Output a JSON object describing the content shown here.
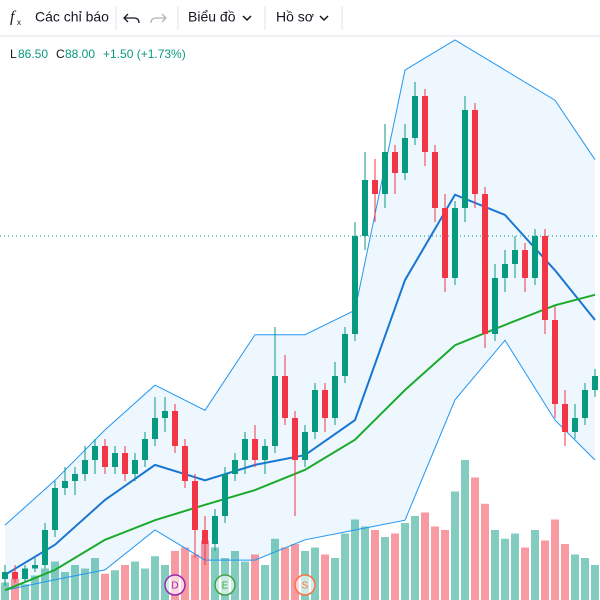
{
  "toolbar": {
    "indicators": "Các chỉ báo",
    "chart": "Biểu đồ",
    "profile": "Hồ sơ"
  },
  "legend": {
    "low_label": "L",
    "low": "86.50",
    "close_label": "C",
    "close": "88.00",
    "change": "+1.50 (+1.73%)"
  },
  "chart_data": {
    "type": "candlestick",
    "ylim": [
      40,
      120
    ],
    "vlim": [
      0,
      100
    ],
    "up_color": "#089981",
    "down_color": "#f23645",
    "candles": [
      [
        43,
        45,
        42,
        44
      ],
      [
        44,
        45,
        42.5,
        43
      ],
      [
        43,
        45,
        42.5,
        44.5
      ],
      [
        44.5,
        46,
        44,
        45
      ],
      [
        45,
        51,
        44.5,
        50
      ],
      [
        50,
        57,
        49,
        56
      ],
      [
        56,
        59,
        55,
        57
      ],
      [
        57,
        59,
        55,
        58
      ],
      [
        58,
        62,
        57,
        60
      ],
      [
        60,
        63,
        58,
        62
      ],
      [
        62,
        63,
        58,
        59
      ],
      [
        59,
        62,
        58,
        61
      ],
      [
        61,
        62,
        57,
        58
      ],
      [
        58,
        61,
        57,
        60
      ],
      [
        60,
        64,
        59,
        63
      ],
      [
        63,
        69,
        62,
        66
      ],
      [
        66,
        69,
        64,
        67
      ],
      [
        67,
        68,
        61,
        62
      ],
      [
        62,
        63,
        56,
        57
      ],
      [
        57,
        58,
        46,
        50
      ],
      [
        50,
        52,
        45,
        48
      ],
      [
        48,
        53,
        47,
        52
      ],
      [
        52,
        59,
        51,
        58
      ],
      [
        58,
        61,
        57,
        60
      ],
      [
        60,
        64,
        58,
        63
      ],
      [
        63,
        65,
        59,
        60
      ],
      [
        60,
        63,
        58,
        62
      ],
      [
        62,
        79,
        61,
        72
      ],
      [
        72,
        75,
        65,
        66
      ],
      [
        66,
        67,
        52,
        60
      ],
      [
        60,
        65,
        59,
        64
      ],
      [
        64,
        71,
        63,
        70
      ],
      [
        70,
        71,
        64,
        66
      ],
      [
        66,
        74,
        65,
        72
      ],
      [
        72,
        79,
        71,
        78
      ],
      [
        78,
        94,
        77,
        92
      ],
      [
        92,
        104,
        90,
        100
      ],
      [
        100,
        103,
        94,
        98
      ],
      [
        98,
        108,
        96,
        104
      ],
      [
        104,
        105,
        98,
        101
      ],
      [
        101,
        108,
        100,
        106
      ],
      [
        106,
        114,
        105,
        112
      ],
      [
        112,
        113,
        102,
        104
      ],
      [
        104,
        105,
        94,
        96
      ],
      [
        96,
        98,
        84,
        86
      ],
      [
        86,
        97,
        85,
        96
      ],
      [
        96,
        112,
        94,
        110
      ],
      [
        110,
        111,
        96,
        98
      ],
      [
        98,
        99,
        76,
        78
      ],
      [
        78,
        88,
        77,
        86
      ],
      [
        86,
        90,
        84,
        88
      ],
      [
        88,
        92,
        86,
        90
      ],
      [
        90,
        91,
        84,
        86
      ],
      [
        86,
        93,
        85,
        92
      ],
      [
        92,
        93,
        78,
        80
      ],
      [
        80,
        82,
        66,
        68
      ],
      [
        68,
        70,
        62,
        64
      ],
      [
        64,
        68,
        63,
        66
      ],
      [
        66,
        71,
        65,
        70
      ],
      [
        70,
        73,
        69,
        72
      ]
    ],
    "volume": [
      10,
      12,
      9,
      14,
      18,
      22,
      16,
      20,
      18,
      24,
      15,
      17,
      20,
      22,
      18,
      25,
      20,
      28,
      30,
      26,
      34,
      30,
      24,
      28,
      22,
      26,
      20,
      35,
      30,
      32,
      28,
      30,
      26,
      24,
      38,
      46,
      42,
      40,
      36,
      38,
      44,
      48,
      50,
      42,
      40,
      62,
      80,
      70,
      55,
      40,
      35,
      38,
      30,
      40,
      34,
      46,
      32,
      26,
      24,
      20
    ],
    "price_line": 92,
    "lines": [
      {
        "name": "upper",
        "color": "#2196f3",
        "width": 1,
        "x": [
          0,
          5,
          10,
          15,
          20,
          25,
          30,
          35,
          40,
          45,
          50,
          55,
          59
        ],
        "values": [
          50.7,
          57.1,
          64.3,
          70.7,
          67.1,
          77.9,
          77.9,
          81.4,
          115.7,
          120,
          115.7,
          111.4,
          102.9
        ]
      },
      {
        "name": "lower",
        "color": "#2196f3",
        "width": 1,
        "x": [
          0,
          5,
          10,
          15,
          20,
          25,
          30,
          35,
          40,
          45,
          50,
          55,
          59
        ],
        "values": [
          41.4,
          42.9,
          44.3,
          50,
          45.7,
          45.7,
          48.6,
          50,
          51.4,
          68.6,
          77.1,
          65.7,
          60
        ]
      },
      {
        "name": "basis",
        "color": "#1976d2",
        "width": 2,
        "x": [
          0,
          5,
          10,
          15,
          20,
          25,
          30,
          35,
          40,
          45,
          50,
          55,
          59
        ],
        "values": [
          43.6,
          47.9,
          54.3,
          59.3,
          57.1,
          59.3,
          60.7,
          65.7,
          85.7,
          97.9,
          95,
          87.1,
          80
        ]
      },
      {
        "name": "ma",
        "color": "#1bab2c",
        "width": 2,
        "x": [
          0,
          5,
          10,
          15,
          20,
          25,
          30,
          35,
          40,
          45,
          50,
          55,
          59
        ],
        "values": [
          41.4,
          44.3,
          48.6,
          51.4,
          53.6,
          55.7,
          58.6,
          62.9,
          70,
          76.4,
          79.3,
          82.1,
          83.6
        ]
      }
    ],
    "events": [
      {
        "label": "D",
        "color": "#9c27b0",
        "index": 17
      },
      {
        "label": "E",
        "color": "#43a047",
        "index": 22
      },
      {
        "label": "S",
        "color": "#ff7043",
        "index": 30
      }
    ]
  }
}
